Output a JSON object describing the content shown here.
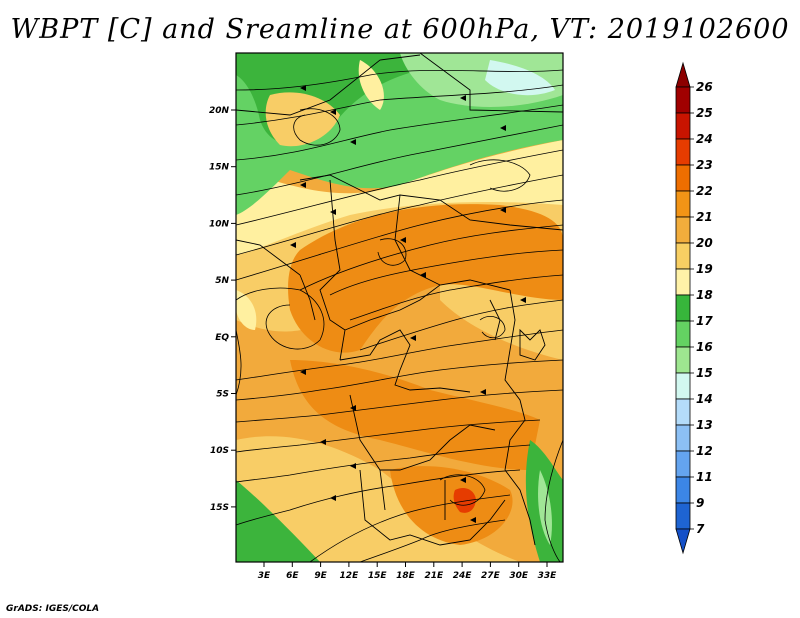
{
  "title": "WBPT [C] and Sreamline at 600hPa, VT: 2019102600",
  "credit": "GrADS: IGES/COLA",
  "map": {
    "lon_range": [
      0,
      35
    ],
    "lat_range": [
      -20,
      25
    ],
    "lon_ticks": [
      "3E",
      "6E",
      "9E",
      "12E",
      "15E",
      "18E",
      "21E",
      "24E",
      "27E",
      "30E",
      "33E"
    ],
    "lat_ticks": [
      "20N",
      "15N",
      "10N",
      "5N",
      "EQ",
      "5S",
      "10S",
      "15S"
    ]
  },
  "colorbar": {
    "levels": [
      "26",
      "25",
      "24",
      "23",
      "22",
      "21",
      "20",
      "19",
      "18",
      "17",
      "16",
      "15",
      "14",
      "13",
      "12",
      "11",
      "9",
      "7"
    ],
    "colors": [
      "#a00000",
      "#c81400",
      "#e63c00",
      "#ee6e00",
      "#f29416",
      "#f2ad3c",
      "#f8cf63",
      "#fff2a8",
      "#37b63b",
      "#64d262",
      "#9ee690",
      "#d2f8f0",
      "#b4dcfa",
      "#8cc0f5",
      "#64a4ef",
      "#3c86e6",
      "#1e64d2"
    ],
    "top_arrow_color": "#8c0000",
    "bottom_arrow_color": "#1450c8"
  },
  "colors": {
    "orange_dark": "#ee8c14",
    "orange": "#f2aa3c",
    "light_orange": "#f8cd66",
    "yellow": "#fff0a0",
    "green_dark": "#3cb43c",
    "green": "#64d264",
    "green_light": "#a0e696",
    "red": "#e63c00"
  }
}
